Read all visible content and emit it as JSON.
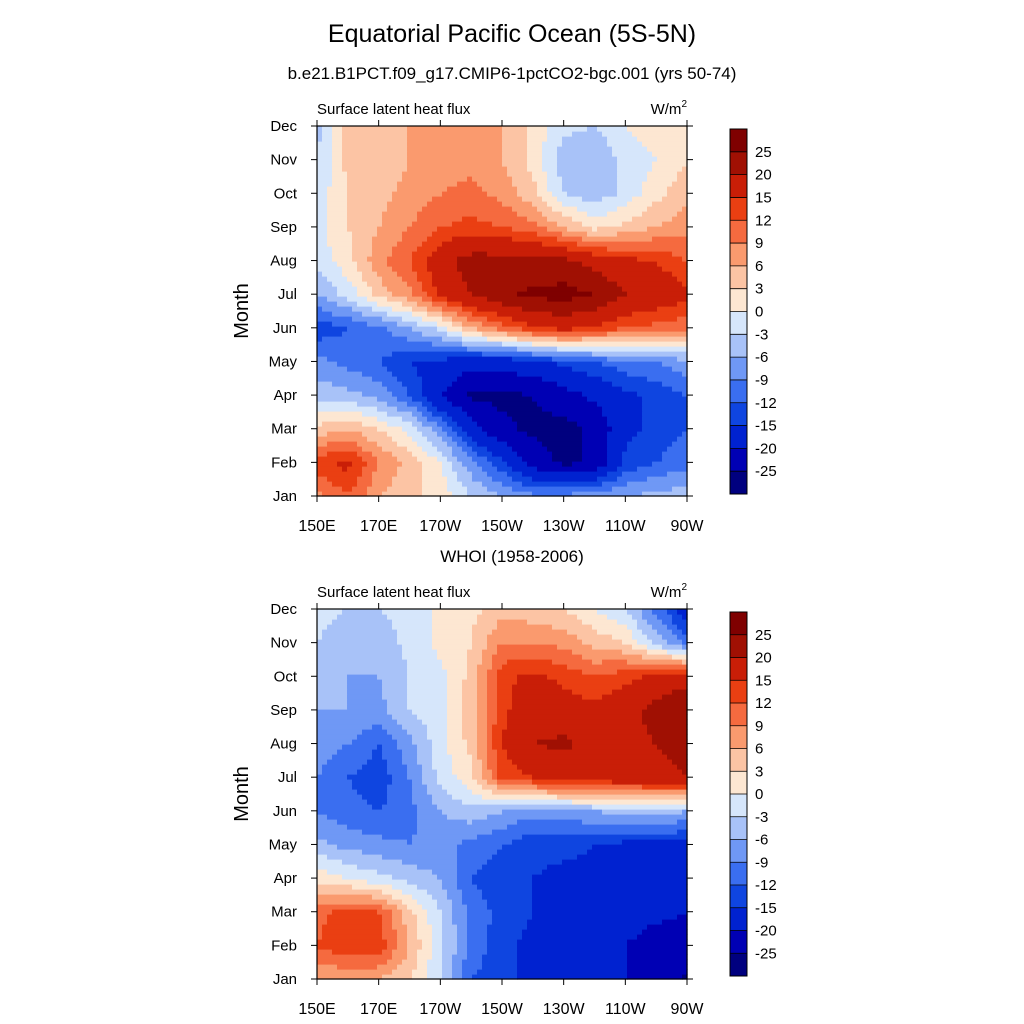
{
  "figure": {
    "title": "Equatorial Pacific Ocean (5S-5N)"
  },
  "colorbar": {
    "colors": [
      "#00007f",
      "#0000b4",
      "#0022d0",
      "#0f45e0",
      "#3a6ef0",
      "#6f98f5",
      "#a8c2f8",
      "#d6e6fb",
      "#fde7d2",
      "#fcc4a4",
      "#fa9a6e",
      "#f56a3f",
      "#ea3f12",
      "#c91e07",
      "#a01003",
      "#7f0000"
    ],
    "labels": [
      "-25",
      "-20",
      "-15",
      "-12",
      "-9",
      "-6",
      "-3",
      "0",
      "3",
      "6",
      "9",
      "12",
      "15",
      "20",
      "25"
    ]
  },
  "chart_data": [
    {
      "type": "heatmap",
      "title": "b.e21.B1PCT.f09_g17.CMIP6-1pctCO2-bgc.001 (yrs 50-74)",
      "left_label": "Surface latent heat flux",
      "units_base": "W/m",
      "units_sup": "2",
      "ylabel": "Month",
      "xticks": [
        "150E",
        "170E",
        "170W",
        "150W",
        "130W",
        "110W",
        "90W"
      ],
      "yticks": [
        "Jan",
        "Feb",
        "Mar",
        "Apr",
        "May",
        "Jun",
        "Jul",
        "Aug",
        "Sep",
        "Oct",
        "Nov",
        "Dec"
      ],
      "x": [
        150,
        160,
        170,
        180,
        190,
        200,
        210,
        220,
        230,
        240,
        250,
        260,
        270
      ],
      "levels": [
        -25,
        -20,
        -15,
        -12,
        -9,
        -6,
        -3,
        0,
        3,
        6,
        9,
        12,
        15,
        20,
        25
      ],
      "z": [
        [
          8,
          12,
          6,
          4,
          2,
          -3,
          -6,
          -8,
          -8,
          -7,
          -6,
          -5,
          -4
        ],
        [
          14,
          16,
          9,
          5,
          0,
          -8,
          -14,
          -22,
          -26,
          -24,
          -14,
          -12,
          -10
        ],
        [
          4,
          6,
          3,
          -1,
          -8,
          -18,
          -24,
          -26,
          -27,
          -24,
          -16,
          -14,
          -12
        ],
        [
          -4,
          -5,
          -7,
          -12,
          -20,
          -26,
          -26,
          -25,
          -22,
          -19,
          -16,
          -14,
          -12
        ],
        [
          -8,
          -10,
          -12,
          -15,
          -16,
          -18,
          -18,
          -16,
          -14,
          -12,
          -10,
          -9,
          -7
        ],
        [
          -14,
          -12,
          -10,
          -6,
          -2,
          6,
          10,
          14,
          16,
          14,
          12,
          11,
          10
        ],
        [
          -6,
          -2,
          4,
          8,
          16,
          20,
          24,
          26,
          27,
          25,
          20,
          18,
          16
        ],
        [
          -2,
          2,
          8,
          12,
          18,
          22,
          22,
          22,
          21,
          18,
          16,
          15,
          12
        ],
        [
          -1,
          3,
          6,
          9,
          12,
          13,
          12,
          10,
          6,
          2,
          4,
          6,
          8
        ],
        [
          -2,
          3,
          5,
          7,
          9,
          10,
          8,
          4,
          -3,
          -5,
          -2,
          2,
          5
        ],
        [
          -3,
          4,
          4,
          6,
          7,
          8,
          6,
          2,
          -5,
          -6,
          -2,
          0,
          3
        ],
        [
          -4,
          4,
          4,
          6,
          6,
          7,
          6,
          2,
          -2,
          -3,
          0,
          2,
          2
        ]
      ]
    },
    {
      "type": "heatmap",
      "title": "WHOI (1958-2006)",
      "left_label": "Surface latent heat flux",
      "units_base": "W/m",
      "units_sup": "2",
      "ylabel": "Month",
      "xticks": [
        "150E",
        "170E",
        "170W",
        "150W",
        "130W",
        "110W",
        "90W"
      ],
      "yticks": [
        "Jan",
        "Feb",
        "Mar",
        "Apr",
        "May",
        "Jun",
        "Jul",
        "Aug",
        "Sep",
        "Oct",
        "Nov",
        "Dec"
      ],
      "x": [
        150,
        160,
        170,
        180,
        190,
        200,
        210,
        220,
        230,
        240,
        250,
        260,
        270
      ],
      "levels": [
        -25,
        -20,
        -15,
        -12,
        -9,
        -6,
        -3,
        0,
        3,
        6,
        9,
        12,
        15,
        20,
        25
      ],
      "z": [
        [
          6,
          6,
          6,
          3,
          -3,
          -12,
          -14,
          -16,
          -16,
          -18,
          -20,
          -22,
          -26
        ],
        [
          12,
          15,
          14,
          6,
          -2,
          -10,
          -14,
          -16,
          -17,
          -18,
          -20,
          -22,
          -22
        ],
        [
          11,
          13,
          12,
          4,
          -3,
          -10,
          -13,
          -15,
          -16,
          -16,
          -18,
          -19,
          -20
        ],
        [
          2,
          0,
          -2,
          -4,
          -6,
          -12,
          -14,
          -15,
          -16,
          -16,
          -17,
          -18,
          -18
        ],
        [
          -5,
          -7,
          -8,
          -9,
          -8,
          -10,
          -12,
          -14,
          -14,
          -15,
          -16,
          -16,
          -16
        ],
        [
          -9,
          -11,
          -12,
          -10,
          -6,
          -4,
          -6,
          -8,
          -7,
          -6,
          -5,
          -5,
          -6
        ],
        [
          -9,
          -12,
          -14,
          -9,
          -2,
          2,
          13,
          15,
          17,
          18,
          18,
          19,
          20
        ],
        [
          -7,
          -9,
          -12,
          -7,
          -1,
          4,
          15,
          20,
          21,
          18,
          18,
          20,
          21
        ],
        [
          -6,
          -6,
          -7,
          -3,
          -1,
          5,
          14,
          18,
          17,
          16,
          18,
          22,
          25
        ],
        [
          -3,
          -6,
          -6,
          -3,
          -1,
          4,
          14,
          16,
          14,
          12,
          14,
          16,
          18
        ],
        [
          -3,
          -5,
          -5,
          -2,
          1,
          3,
          9,
          9,
          8,
          5,
          3,
          -4,
          -10
        ],
        [
          -2,
          -3,
          -3,
          -2,
          1,
          2,
          5,
          4,
          3,
          0,
          -3,
          -10,
          -18
        ]
      ]
    }
  ]
}
